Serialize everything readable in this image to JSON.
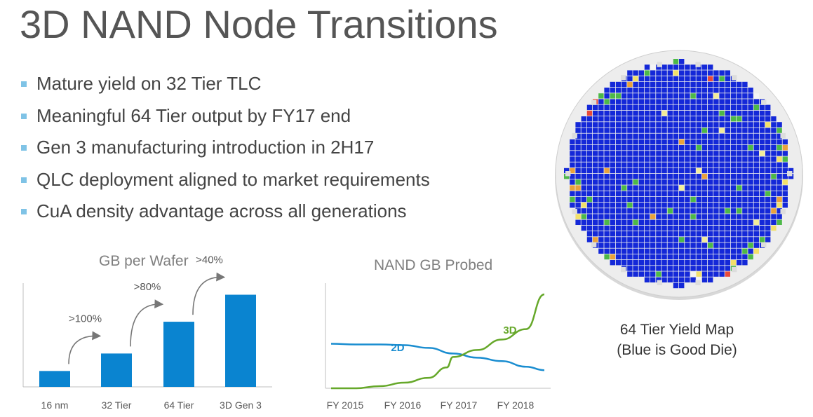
{
  "title": "3D NAND Node Transitions",
  "bullets": [
    "Mature yield on 32 Tier TLC",
    "Meaningful 64 Tier output by FY17 end",
    "Gen 3 manufacturing introduction in 2H17",
    "QLC deployment aligned to market requirements",
    "CuA density advantage across all generations"
  ],
  "colors": {
    "bar": "#0a84d0",
    "line2d": "#1a8dd0",
    "line3d": "#66a82a",
    "bullet": "#7fc3e6",
    "wafer_good": "#1428d8"
  },
  "chart_data": [
    {
      "type": "bar",
      "title": "GB per Wafer",
      "categories": [
        "16 nm",
        "32 Tier",
        "64 Tier",
        "3D Gen 3"
      ],
      "values": [
        1.0,
        2.1,
        4.1,
        5.8
      ],
      "annotations": [
        ">100%",
        ">80%",
        ">40%"
      ]
    },
    {
      "type": "line",
      "title": "NAND GB Probed",
      "x_ticks": [
        "FY 2015",
        "FY 2016",
        "FY 2017",
        "FY 2018"
      ],
      "series": [
        {
          "name": "2D",
          "x": [
            2015.0,
            2015.4,
            2015.8,
            2016.2,
            2016.6,
            2017.0,
            2017.4,
            2017.8,
            2018.2,
            2018.5
          ],
          "values": [
            6.4,
            6.3,
            6.3,
            6.2,
            5.8,
            5.0,
            4.4,
            3.9,
            3.1,
            2.6
          ]
        },
        {
          "name": "3D",
          "x": [
            2015.0,
            2015.4,
            2015.8,
            2016.2,
            2016.6,
            2016.9,
            2017.0,
            2017.4,
            2017.8,
            2018.2,
            2018.5
          ],
          "values": [
            0.0,
            0.0,
            0.3,
            0.8,
            1.5,
            3.0,
            4.5,
            5.5,
            7.0,
            8.5,
            13.5
          ]
        }
      ]
    }
  ],
  "wafer_caption": [
    "64 Tier Yield Map",
    "(Blue is Good Die)"
  ]
}
